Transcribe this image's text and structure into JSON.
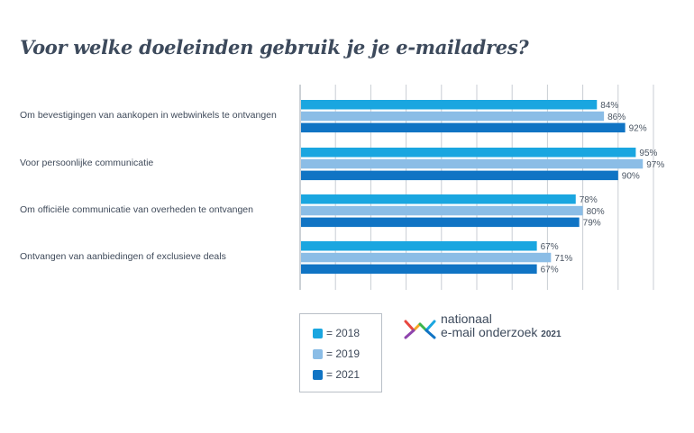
{
  "chart_data": {
    "type": "bar",
    "orientation": "horizontal",
    "title": "Voor welke doeleinden gebruik je je e-mailadres?",
    "categories": [
      "Om bevestigingen van aankopen in webwinkels te ontvangen",
      "Voor persoonlijke communicatie",
      "Om officiële communicatie van overheden te ontvangen",
      "Ontvangen van aanbiedingen of exclusieve deals"
    ],
    "series": [
      {
        "name": "2018",
        "label": "= 2018",
        "color": "#1aa6e0",
        "values": [
          84,
          95,
          78,
          67
        ]
      },
      {
        "name": "2019",
        "label": "= 2019",
        "color": "#8bbde6",
        "values": [
          86,
          97,
          80,
          71
        ]
      },
      {
        "name": "2021",
        "label": "= 2021",
        "color": "#1074c4",
        "values": [
          92,
          90,
          79,
          67
        ]
      }
    ],
    "value_labels": [
      [
        "84%",
        "95%",
        "78%",
        "67%"
      ],
      [
        "86%",
        "97%",
        "80%",
        "71%"
      ],
      [
        "92%",
        "90%",
        "79%",
        "67%"
      ]
    ],
    "xlim": [
      0,
      100
    ],
    "grid": true,
    "legend": "bottom-left"
  },
  "brand": {
    "line1": "nationaal",
    "line2": "e-mail onderzoek",
    "year": "2021"
  }
}
